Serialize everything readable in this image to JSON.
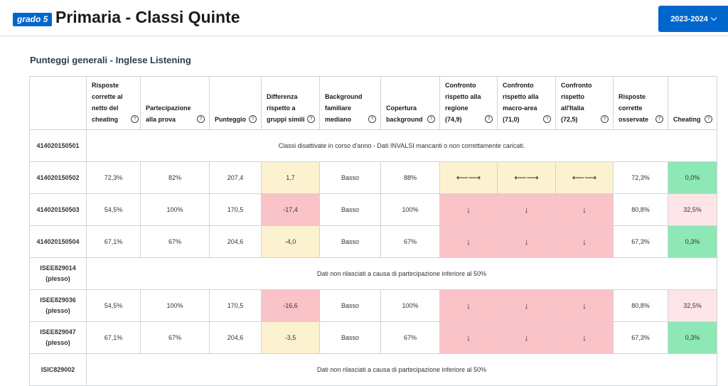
{
  "header": {
    "grade_badge": "grado 5",
    "title": "Primaria - Classi Quinte",
    "year_select": "2023-2024"
  },
  "section_title": "Punteggi generali - Inglese Listening",
  "columns": [
    "Risposte corrette al netto del cheating",
    "Partecipazione alla prova",
    "Punteggio",
    "Differenza rispetto a gruppi simili",
    "Background familiare mediano",
    "Copertura background",
    "Confronto rispetto alla regione (74,9)",
    "Confronto rispetto alla macro-area (71,0)",
    "Confronto rispetto all'Italia (72,5)",
    "Risposte corrette osservate",
    "Cheating"
  ],
  "rows": [
    {
      "id": "414020150501",
      "message": "Classi disattivate in corso d'anno - Dati INVALSI mancanti o non correttamente caricati."
    },
    {
      "id": "414020150502",
      "cells": [
        "72,3%",
        "82%",
        "207,4",
        "1,7",
        "Basso",
        "88%",
        "⟵⟶",
        "⟵⟶",
        "⟵⟶",
        "72,3%",
        "0,0%"
      ]
    },
    {
      "id": "414020150503",
      "cells": [
        "54,5%",
        "100%",
        "170,5",
        "-17,4",
        "Basso",
        "100%",
        "↓",
        "↓",
        "↓",
        "80,8%",
        "32,5%"
      ]
    },
    {
      "id": "414020150504",
      "cells": [
        "67,1%",
        "67%",
        "204,6",
        "-4,0",
        "Basso",
        "67%",
        "↓",
        "↓",
        "↓",
        "67,3%",
        "0,3%"
      ]
    },
    {
      "id": "ISEE829014",
      "sub": "(plesso)",
      "message": "Dati non rilasciati a causa di partecipazione inferiore al 50%"
    },
    {
      "id": "ISEE829036",
      "sub": "(plesso)",
      "cells": [
        "54,5%",
        "100%",
        "170,5",
        "-16,6",
        "Basso",
        "100%",
        "↓",
        "↓",
        "↓",
        "80,8%",
        "32,5%"
      ]
    },
    {
      "id": "ISEE829047",
      "sub": "(plesso)",
      "cells": [
        "67,1%",
        "67%",
        "204,6",
        "-3,5",
        "Basso",
        "67%",
        "↓",
        "↓",
        "↓",
        "67,3%",
        "0,3%"
      ]
    },
    {
      "id": "ISIC829002",
      "message": "Dati non rilasciati a causa di partecipazione inferiore al 50%"
    }
  ],
  "colors": {
    "accent": "#0066cc",
    "neutral_yellow": "#fdf2d0",
    "below_red": "#f9c3c8",
    "good_green": "#8de8b5",
    "warn_pink": "#fde5e7"
  }
}
